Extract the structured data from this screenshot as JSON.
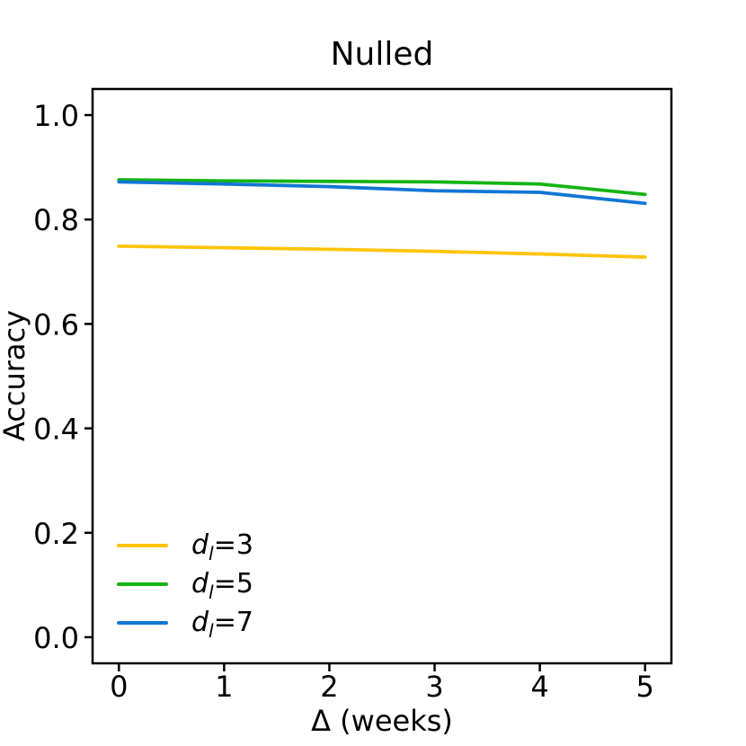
{
  "chart_data": {
    "type": "line",
    "title": "Nulled",
    "xlabel": "Δ (weeks)",
    "ylabel": "Accuracy",
    "grid": false,
    "legend_position": "lower left",
    "axis_color": "#000000",
    "xlim": [
      -0.25,
      5.25
    ],
    "ylim": [
      -0.05,
      1.05
    ],
    "x": [
      0,
      1,
      2,
      3,
      4,
      5
    ],
    "xtick_values": [
      0,
      1,
      2,
      3,
      4,
      5
    ],
    "xtick_labels": [
      "0",
      "1",
      "2",
      "3",
      "4",
      "5"
    ],
    "ytick_values": [
      0.0,
      0.2,
      0.4,
      0.6,
      0.8,
      1.0
    ],
    "ytick_labels": [
      "0.0",
      "0.2",
      "0.4",
      "0.6",
      "0.8",
      "1.0"
    ],
    "series": [
      {
        "name": "d_l=3",
        "label_var": "d",
        "label_sub": "l",
        "label_eq": "=3",
        "color": "#ffc40a",
        "values": [
          0.749,
          0.746,
          0.743,
          0.739,
          0.734,
          0.728
        ]
      },
      {
        "name": "d_l=5",
        "label_var": "d",
        "label_sub": "l",
        "label_eq": "=5",
        "color": "#15b415",
        "values": [
          0.876,
          0.874,
          0.873,
          0.872,
          0.868,
          0.848
        ]
      },
      {
        "name": "d_l=7",
        "label_var": "d",
        "label_sub": "l",
        "label_eq": "=7",
        "color": "#1176d5",
        "values": [
          0.872,
          0.868,
          0.863,
          0.855,
          0.852,
          0.831
        ]
      }
    ]
  }
}
